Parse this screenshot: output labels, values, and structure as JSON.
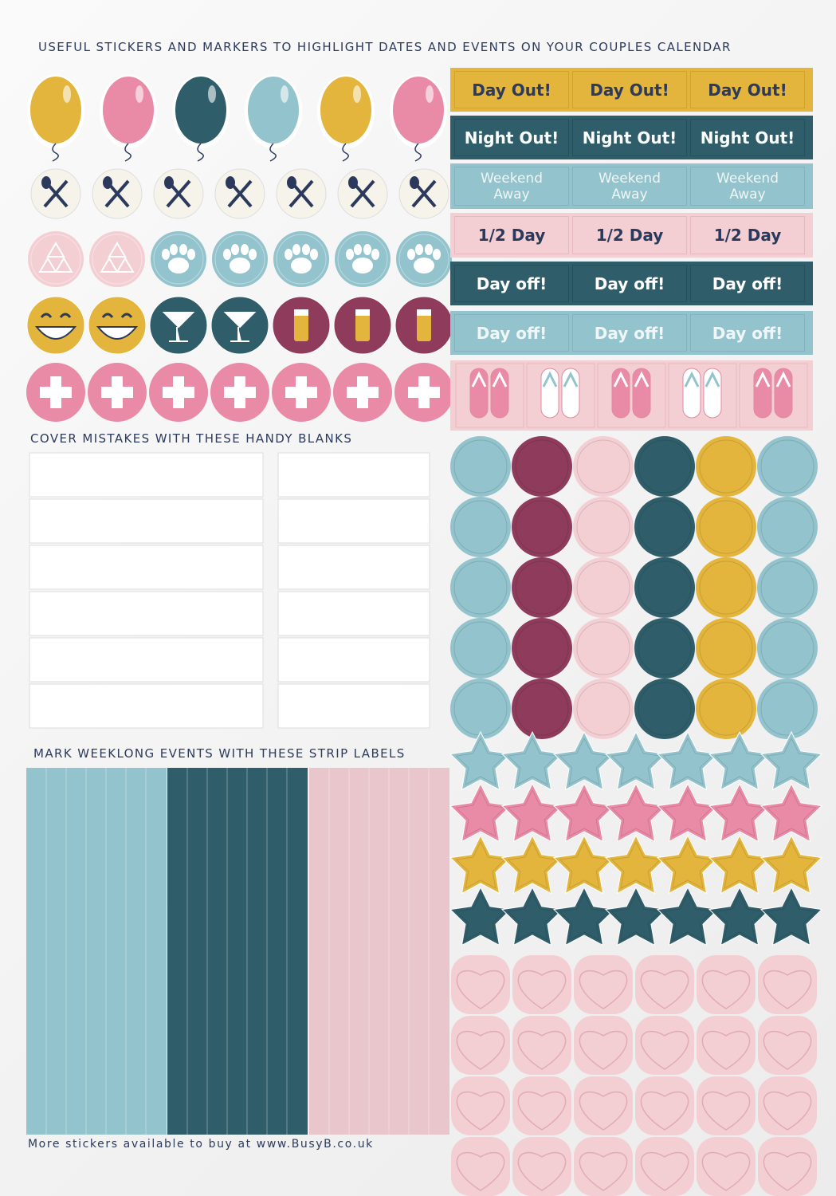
{
  "header": {
    "title": "USEFUL STICKERS AND MARKERS TO HIGHLIGHT DATES AND EVENTS ON YOUR COUPLES CALENDAR"
  },
  "labels": {
    "rows": [
      [
        "Day Out!",
        "Day Out!",
        "Day Out!"
      ],
      [
        "Night Out!",
        "Night Out!",
        "Night Out!"
      ],
      [
        "Weekend Away",
        "Weekend Away",
        "Weekend Away"
      ],
      [
        "1/2 Day",
        "1/2 Day",
        "1/2 Day"
      ],
      [
        "Day off!",
        "Day off!",
        "Day off!"
      ],
      [
        "Day off!",
        "Day off!",
        "Day off!"
      ]
    ]
  },
  "blanks": {
    "heading": "COVER MISTAKES WITH THESE HANDY BLANKS"
  },
  "strips": {
    "heading": "MARK WEEKLONG EVENTS WITH THESE STRIP LABELS"
  },
  "footer": {
    "text": "More stickers available to buy at www.BusyB.co.uk"
  }
}
